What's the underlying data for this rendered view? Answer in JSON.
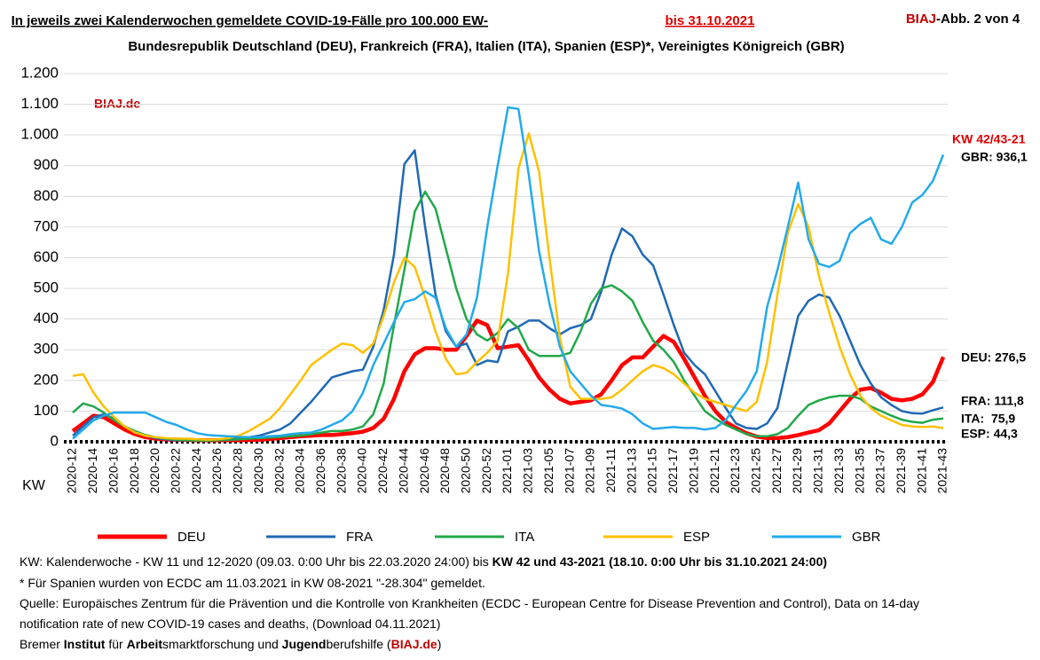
{
  "chart_data": {
    "type": "line",
    "title": "In jeweils zwei Kalenderwochen gemeldete COVID-19-Fälle pro 100.000 EW-",
    "title_date": "bis 31.10.2021",
    "subtitle": "Bundesrepublik Deutschland (DEU), Frankreich (FRA), Italien (ITA), Spanien (ESP)*, Vereinigtes Königreich (GBR)",
    "figure_label": {
      "brand": "BIAJ",
      "text": "-Abb. 2 von 4"
    },
    "watermark": "BIAJ.de",
    "x_label": "KW",
    "categories": [
      "2020-12",
      null,
      "2020-14",
      null,
      "2020-16",
      null,
      "2020-18",
      null,
      "2020-20",
      null,
      "2020-22",
      null,
      "2020-24",
      null,
      "2020-26",
      null,
      "2020-28",
      null,
      "2020-30",
      null,
      "2020-32",
      null,
      "2020-34",
      null,
      "2020-36",
      null,
      "2020-38",
      null,
      "2020-40",
      null,
      "2020-42",
      null,
      "2020-44",
      null,
      "2020-46",
      null,
      "2020-48",
      null,
      "2020-50",
      null,
      "2020-52",
      null,
      "2021-01",
      null,
      "2021-03",
      null,
      "2021-05",
      null,
      "2021-07",
      null,
      "2021-09",
      null,
      "2021-11",
      null,
      "2021-13",
      null,
      "2021-15",
      null,
      "2021-17",
      null,
      "2021-19",
      null,
      "2021-21",
      null,
      "2021-23",
      null,
      "2021-25",
      null,
      "2021-27",
      null,
      "2021-29",
      null,
      "2021-31",
      null,
      "2021-33",
      null,
      "2021-35",
      null,
      "2021-37",
      null,
      "2021-39",
      null,
      "2021-41",
      null,
      "2021-43"
    ],
    "series": [
      {
        "name": "DEU",
        "color": "#ff0000",
        "width": 4.5,
        "values": [
          35,
          60,
          85,
          80,
          60,
          40,
          25,
          15,
          10,
          8,
          7,
          6,
          5,
          5,
          5,
          5,
          5,
          6,
          7,
          9,
          12,
          15,
          18,
          20,
          22,
          22,
          25,
          28,
          33,
          45,
          75,
          140,
          230,
          285,
          305,
          305,
          300,
          300,
          345,
          395,
          380,
          305,
          310,
          315,
          265,
          210,
          170,
          140,
          125,
          130,
          135,
          155,
          200,
          250,
          275,
          275,
          310,
          345,
          325,
          270,
          210,
          150,
          100,
          65,
          45,
          28,
          17,
          12,
          12,
          15,
          22,
          30,
          38,
          60,
          100,
          140,
          170,
          175,
          160,
          140,
          135,
          140,
          155,
          195,
          276.5
        ]
      },
      {
        "name": "FRA",
        "color": "#1f69b4",
        "width": 2.5,
        "values": [
          20,
          50,
          80,
          90,
          75,
          50,
          30,
          20,
          12,
          8,
          5,
          5,
          5,
          5,
          6,
          8,
          10,
          15,
          20,
          30,
          40,
          60,
          95,
          130,
          170,
          210,
          220,
          230,
          235,
          310,
          430,
          610,
          905,
          950,
          700,
          480,
          360,
          310,
          320,
          250,
          265,
          260,
          360,
          375,
          395,
          395,
          370,
          350,
          370,
          380,
          400,
          490,
          610,
          695,
          670,
          610,
          575,
          480,
          380,
          290,
          250,
          220,
          165,
          110,
          60,
          45,
          42,
          60,
          110,
          260,
          410,
          460,
          480,
          470,
          410,
          330,
          250,
          190,
          145,
          120,
          100,
          93,
          92,
          103,
          111.8
        ]
      },
      {
        "name": "ITA",
        "color": "#21a84a",
        "width": 2.5,
        "values": [
          95,
          125,
          115,
          95,
          70,
          50,
          35,
          22,
          15,
          10,
          7,
          5,
          4,
          4,
          5,
          6,
          8,
          10,
          12,
          14,
          16,
          18,
          20,
          25,
          30,
          35,
          35,
          40,
          50,
          90,
          190,
          380,
          560,
          750,
          815,
          760,
          630,
          500,
          400,
          350,
          330,
          355,
          400,
          370,
          300,
          280,
          280,
          280,
          290,
          360,
          450,
          500,
          510,
          490,
          460,
          390,
          330,
          300,
          260,
          200,
          150,
          100,
          75,
          55,
          40,
          25,
          18,
          18,
          25,
          45,
          85,
          120,
          135,
          145,
          150,
          150,
          140,
          115,
          100,
          85,
          72,
          65,
          62,
          72,
          75.9
        ]
      },
      {
        "name": "ESP",
        "color": "#ffc000",
        "width": 2.5,
        "values": [
          215,
          220,
          160,
          115,
          80,
          50,
          30,
          20,
          15,
          12,
          10,
          10,
          8,
          7,
          8,
          12,
          20,
          35,
          55,
          75,
          110,
          155,
          200,
          250,
          275,
          300,
          320,
          315,
          290,
          320,
          410,
          520,
          600,
          570,
          470,
          360,
          270,
          220,
          225,
          260,
          290,
          330,
          550,
          890,
          1005,
          880,
          600,
          340,
          180,
          140,
          140,
          140,
          145,
          170,
          200,
          230,
          250,
          240,
          220,
          190,
          160,
          140,
          130,
          120,
          110,
          100,
          130,
          260,
          480,
          680,
          775,
          700,
          540,
          420,
          310,
          220,
          150,
          110,
          85,
          70,
          55,
          50,
          48,
          50,
          44.3
        ]
      },
      {
        "name": "GBR",
        "color": "#22aaec",
        "width": 2.5,
        "values": [
          10,
          40,
          70,
          85,
          95,
          95,
          95,
          95,
          80,
          65,
          55,
          40,
          28,
          22,
          20,
          18,
          16,
          15,
          15,
          18,
          20,
          25,
          28,
          30,
          40,
          55,
          70,
          100,
          160,
          250,
          320,
          390,
          455,
          465,
          490,
          470,
          370,
          310,
          350,
          470,
          700,
          900,
          1090,
          1085,
          870,
          620,
          450,
          310,
          230,
          190,
          150,
          120,
          115,
          108,
          90,
          60,
          42,
          45,
          48,
          45,
          45,
          40,
          45,
          70,
          120,
          165,
          230,
          440,
          560,
          700,
          845,
          660,
          580,
          570,
          590,
          680,
          710,
          730,
          660,
          645,
          700,
          780,
          805,
          850,
          936.1
        ]
      }
    ],
    "annotations": [
      "KW 42/43-21",
      "GBR: 936,1",
      "DEU: 276,5",
      "FRA: 111,8",
      "ITA:  75,9",
      "ESP: 44,3"
    ],
    "ylim": [
      0,
      1200
    ],
    "yticks": [
      0,
      100,
      200,
      300,
      400,
      500,
      600,
      700,
      800,
      900,
      {
        "value": 1000,
        "label": "1.000"
      },
      {
        "value": 1100,
        "label": "1.100"
      },
      {
        "value": 1200,
        "label": "1.200"
      }
    ],
    "grid": true,
    "footer": [
      [
        "KW: Kalenderwoche - KW 11 und 12-2020 (09.03. 0:00 Uhr bis 22.03.2020 24:00) bis ",
        "KW 42 und 43-2021 (18.10. 0:00 Uhr bis 31.10.2021 24:00)"
      ],
      [
        "* Für Spanien wurden von ECDC am 11.03.2021 in KW 08-2021 \"-28.304\" gemeldet."
      ],
      [
        "Quelle: Europäisches Zentrum für die Prävention und die Kontrolle von Krankheiten (ECDC - European Centre for Disease Prevention and Control), Data on 14-day"
      ],
      [
        "notification rate of new COVID-19 cases and deaths, (Download 04.11.2021)"
      ],
      [
        "Bremer ",
        "Institut",
        " für ",
        "Arbeit",
        "smarktforschung und ",
        "Jugend",
        "berufshilfe (",
        "BIAJ.de",
        ")"
      ]
    ]
  }
}
